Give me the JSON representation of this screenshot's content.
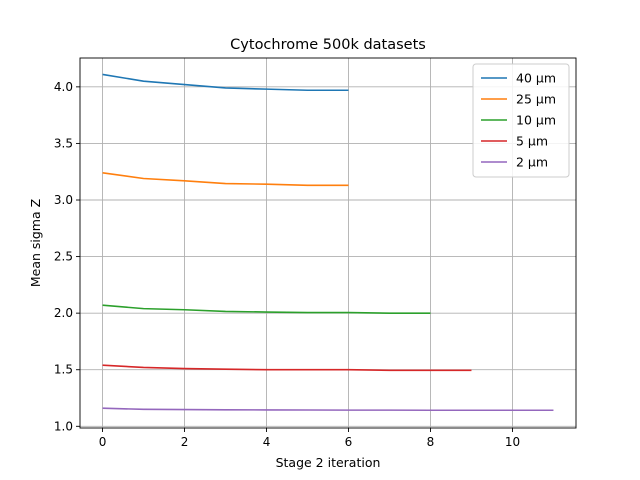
{
  "chart_data": {
    "type": "line",
    "title": "Cytochrome 500k datasets",
    "xlabel": "Stage 2 iteration",
    "ylabel": "Mean sigma Z",
    "xlim": [
      -0.55,
      11.55
    ],
    "ylim": [
      0.985,
      4.255
    ],
    "xticks": [
      0,
      2,
      4,
      6,
      8,
      10
    ],
    "yticks": [
      1.0,
      1.5,
      2.0,
      2.5,
      3.0,
      3.5,
      4.0
    ],
    "ytick_labels": [
      "1.0",
      "1.5",
      "2.0",
      "2.5",
      "3.0",
      "3.5",
      "4.0"
    ],
    "grid": true,
    "legend_position": "upper right",
    "series": [
      {
        "name": "40 µm",
        "color": "#1f77b4",
        "x": [
          0,
          1,
          2,
          3,
          4,
          5,
          6
        ],
        "y": [
          4.11,
          4.05,
          4.02,
          3.99,
          3.98,
          3.97,
          3.97
        ]
      },
      {
        "name": "25 µm",
        "color": "#ff7f0e",
        "x": [
          0,
          1,
          2,
          3,
          4,
          5,
          6
        ],
        "y": [
          3.24,
          3.19,
          3.17,
          3.145,
          3.14,
          3.13,
          3.13
        ]
      },
      {
        "name": "10 µm",
        "color": "#2ca02c",
        "x": [
          0,
          1,
          2,
          3,
          4,
          5,
          6,
          7,
          8
        ],
        "y": [
          2.07,
          2.04,
          2.03,
          2.015,
          2.01,
          2.005,
          2.005,
          2.0,
          2.0
        ]
      },
      {
        "name": "5 µm",
        "color": "#d62728",
        "x": [
          0,
          1,
          2,
          3,
          4,
          5,
          6,
          7,
          8,
          9
        ],
        "y": [
          1.54,
          1.52,
          1.51,
          1.505,
          1.5,
          1.5,
          1.5,
          1.495,
          1.495,
          1.495
        ]
      },
      {
        "name": "2 µm",
        "color": "#9467bd",
        "x": [
          0,
          1,
          2,
          3,
          4,
          5,
          6,
          7,
          8,
          9,
          10,
          11
        ],
        "y": [
          1.16,
          1.15,
          1.148,
          1.146,
          1.145,
          1.144,
          1.143,
          1.143,
          1.142,
          1.142,
          1.142,
          1.142
        ]
      }
    ]
  }
}
